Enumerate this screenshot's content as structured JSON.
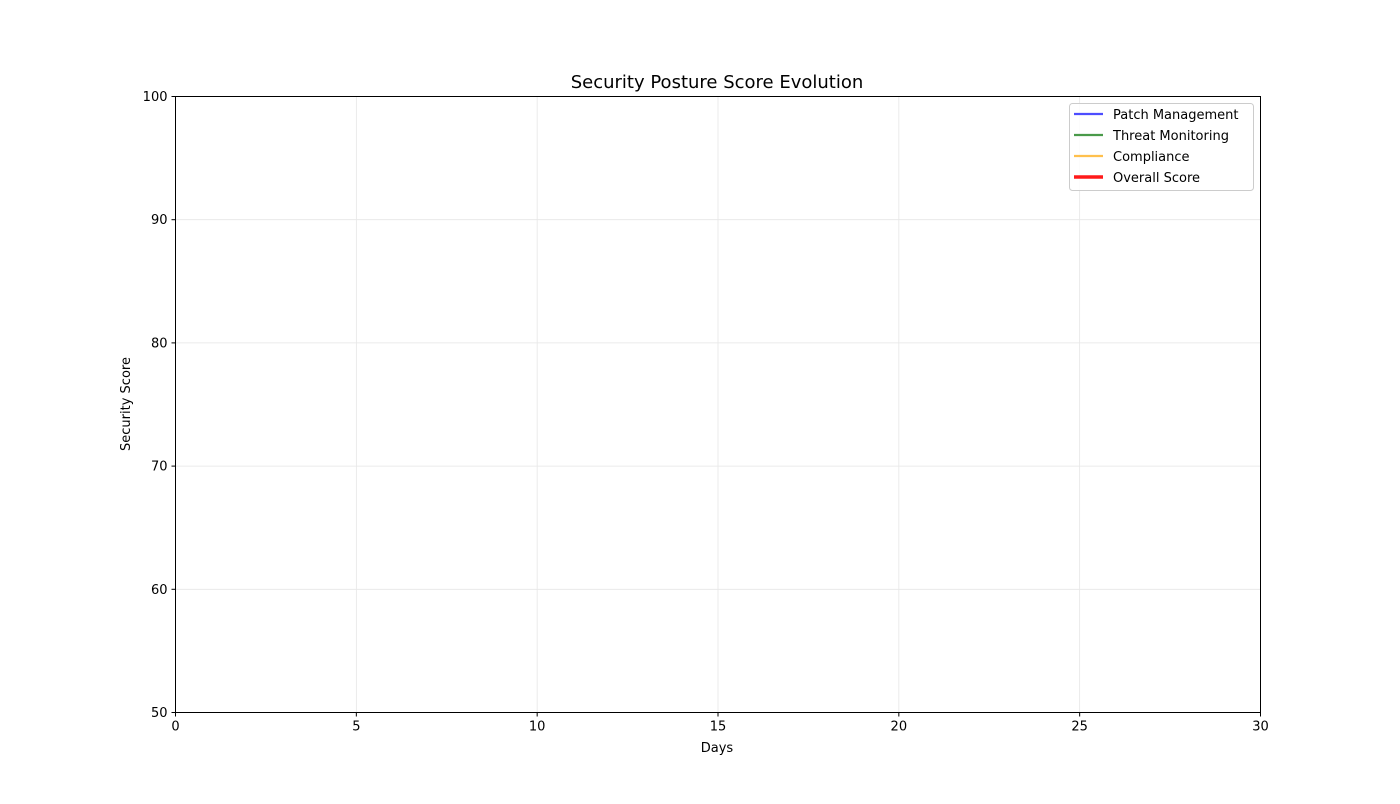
{
  "chart_data": {
    "type": "line",
    "title": "Security Posture Score Evolution",
    "xlabel": "Days",
    "ylabel": "Security Score",
    "xlim": [
      0,
      30
    ],
    "ylim": [
      50,
      100
    ],
    "xticks": [
      "0",
      "5",
      "10",
      "15",
      "20",
      "25",
      "30"
    ],
    "yticks": [
      "50",
      "60",
      "70",
      "80",
      "90",
      "100"
    ],
    "grid": true,
    "legend_placement": "top-right",
    "series": [
      {
        "name": "Patch Management",
        "color": "#4d4dff",
        "x": [],
        "values": []
      },
      {
        "name": "Threat Monitoring",
        "color": "#4a9a4a",
        "x": [],
        "values": []
      },
      {
        "name": "Compliance",
        "color": "#ffc04d",
        "x": [],
        "values": []
      },
      {
        "name": "Overall Score",
        "color": "#ff1a1a",
        "x": [],
        "values": []
      }
    ]
  }
}
